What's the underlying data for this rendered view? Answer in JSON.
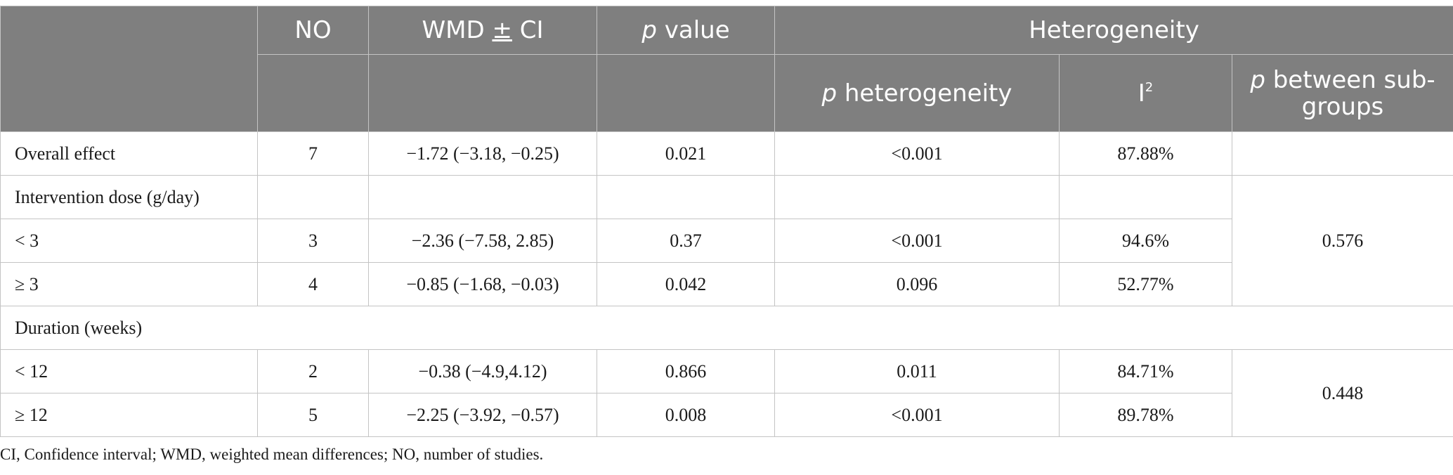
{
  "header": {
    "no": "NO",
    "wmd_prefix": "WMD ",
    "wmd_pm": "±",
    "wmd_suffix": " CI",
    "p_value_p": "p",
    "p_value_rest": " value",
    "heterogeneity": "Heterogeneity",
    "p_het_p": "p",
    "p_het_rest": " heterogeneity",
    "i2_base": "I",
    "i2_sup": "2",
    "p_between_p": "p",
    "p_between_rest": " between sub-groups"
  },
  "rows": {
    "overall": {
      "label": "Overall effect",
      "no": "7",
      "wmd": "−1.72 (−3.18, −0.25)",
      "p": "0.021",
      "p_het": "<0.001",
      "i2": "87.88%"
    },
    "dose_header": {
      "label": "Intervention dose (g/day)"
    },
    "dose_lt3": {
      "label": "< 3",
      "no": "3",
      "wmd": "−2.36 (−7.58, 2.85)",
      "p": "0.37",
      "p_het": "<0.001",
      "i2": "94.6%"
    },
    "dose_ge3": {
      "label": "≥ 3",
      "no": "4",
      "wmd": "−0.85 (−1.68, −0.03)",
      "p": "0.042",
      "p_het": "0.096",
      "i2": "52.77%"
    },
    "dose_between": "0.576",
    "duration_header": {
      "label": "Duration (weeks)"
    },
    "dur_lt12": {
      "label": "< 12",
      "no": "2",
      "wmd": "−0.38 (−4.9,4.12)",
      "p": "0.866",
      "p_het": "0.011",
      "i2": "84.71%"
    },
    "dur_ge12": {
      "label": "≥ 12",
      "no": "5",
      "wmd": "−2.25 (−3.92, −0.57)",
      "p": "0.008",
      "p_het": "<0.001",
      "i2": "89.78%"
    },
    "duration_between": "0.448"
  },
  "footnote": "CI, Confidence interval; WMD, weighted mean differences; NO, number of studies."
}
